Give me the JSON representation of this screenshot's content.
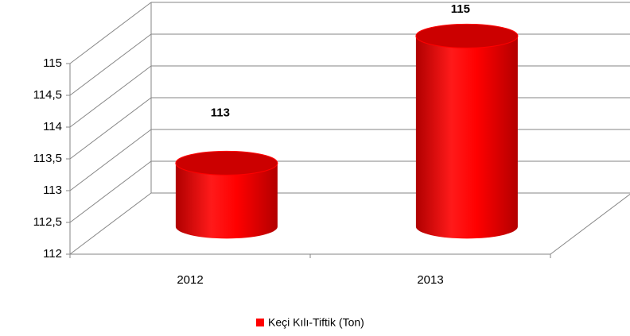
{
  "chart_data": {
    "type": "cylinder",
    "categories": [
      "2012",
      "2013"
    ],
    "series": [
      {
        "name": "Keçi Kılı-Tiftik (Ton)",
        "color": "#ff0000",
        "values": [
          113,
          115
        ]
      }
    ],
    "ylim": [
      112,
      115
    ],
    "yticks": [
      112,
      {
        "value": 112.5,
        "label": "112,5"
      },
      113,
      {
        "value": 113.5,
        "label": "113,5"
      },
      114,
      {
        "value": 114.5,
        "label": "114,5"
      },
      115
    ],
    "grid": true,
    "legend": "bottom"
  }
}
